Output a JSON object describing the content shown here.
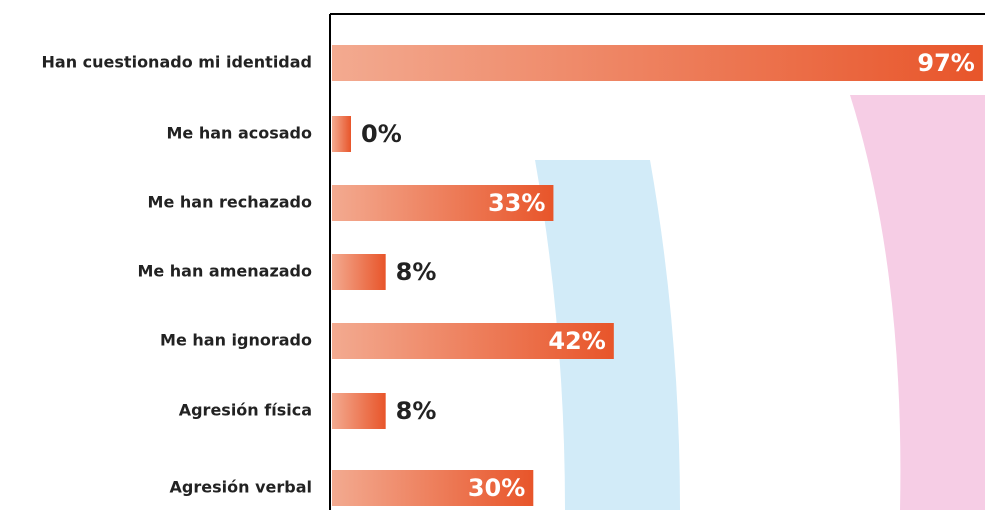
{
  "chart_data": {
    "type": "hbar",
    "categories": [
      "Han cuestionado mi identidad",
      "Me han acosado",
      "Me han rechazado",
      "Me han amenazado",
      "Me han ignorado",
      "Agresión física",
      "Agresión verbal"
    ],
    "values": [
      97,
      0,
      33,
      8,
      42,
      8,
      30
    ],
    "value_labels": [
      "97%",
      "0%",
      "33%",
      "8%",
      "42%",
      "8%",
      "30%"
    ],
    "xlim": [
      0,
      100
    ],
    "color": "#e8552a"
  }
}
